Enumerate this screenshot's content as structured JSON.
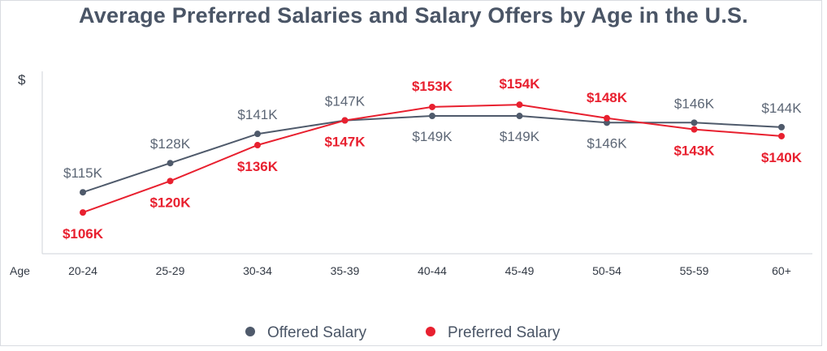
{
  "chart_data": {
    "type": "line",
    "title": "Average Preferred Salaries and Salary Offers by Age in the U.S.",
    "ylabel": "$",
    "xlabel": "Age",
    "categories": [
      "20-24",
      "25-29",
      "30-34",
      "35-39",
      "40-44",
      "45-49",
      "50-54",
      "55-59",
      "60+"
    ],
    "ylim": [
      75,
      175
    ],
    "series": [
      {
        "name": "Offered Salary",
        "color": "#4f5a6b",
        "values": [
          115,
          128,
          141,
          147,
          149,
          149,
          146,
          146,
          144
        ],
        "labels": [
          "$115K",
          "$128K",
          "$141K",
          "$147K",
          "$149K",
          "$149K",
          "$146K",
          "$146K",
          "$144K"
        ]
      },
      {
        "name": "Preferred Salary",
        "color": "#e8202f",
        "values": [
          106,
          120,
          136,
          147,
          153,
          154,
          148,
          143,
          140
        ],
        "labels": [
          "$106K",
          "$120K",
          "$136K",
          "$147K",
          "$153K",
          "$154K",
          "$148K",
          "$143K",
          "$140K"
        ]
      }
    ],
    "legend": {
      "position": "bottom-center"
    }
  }
}
